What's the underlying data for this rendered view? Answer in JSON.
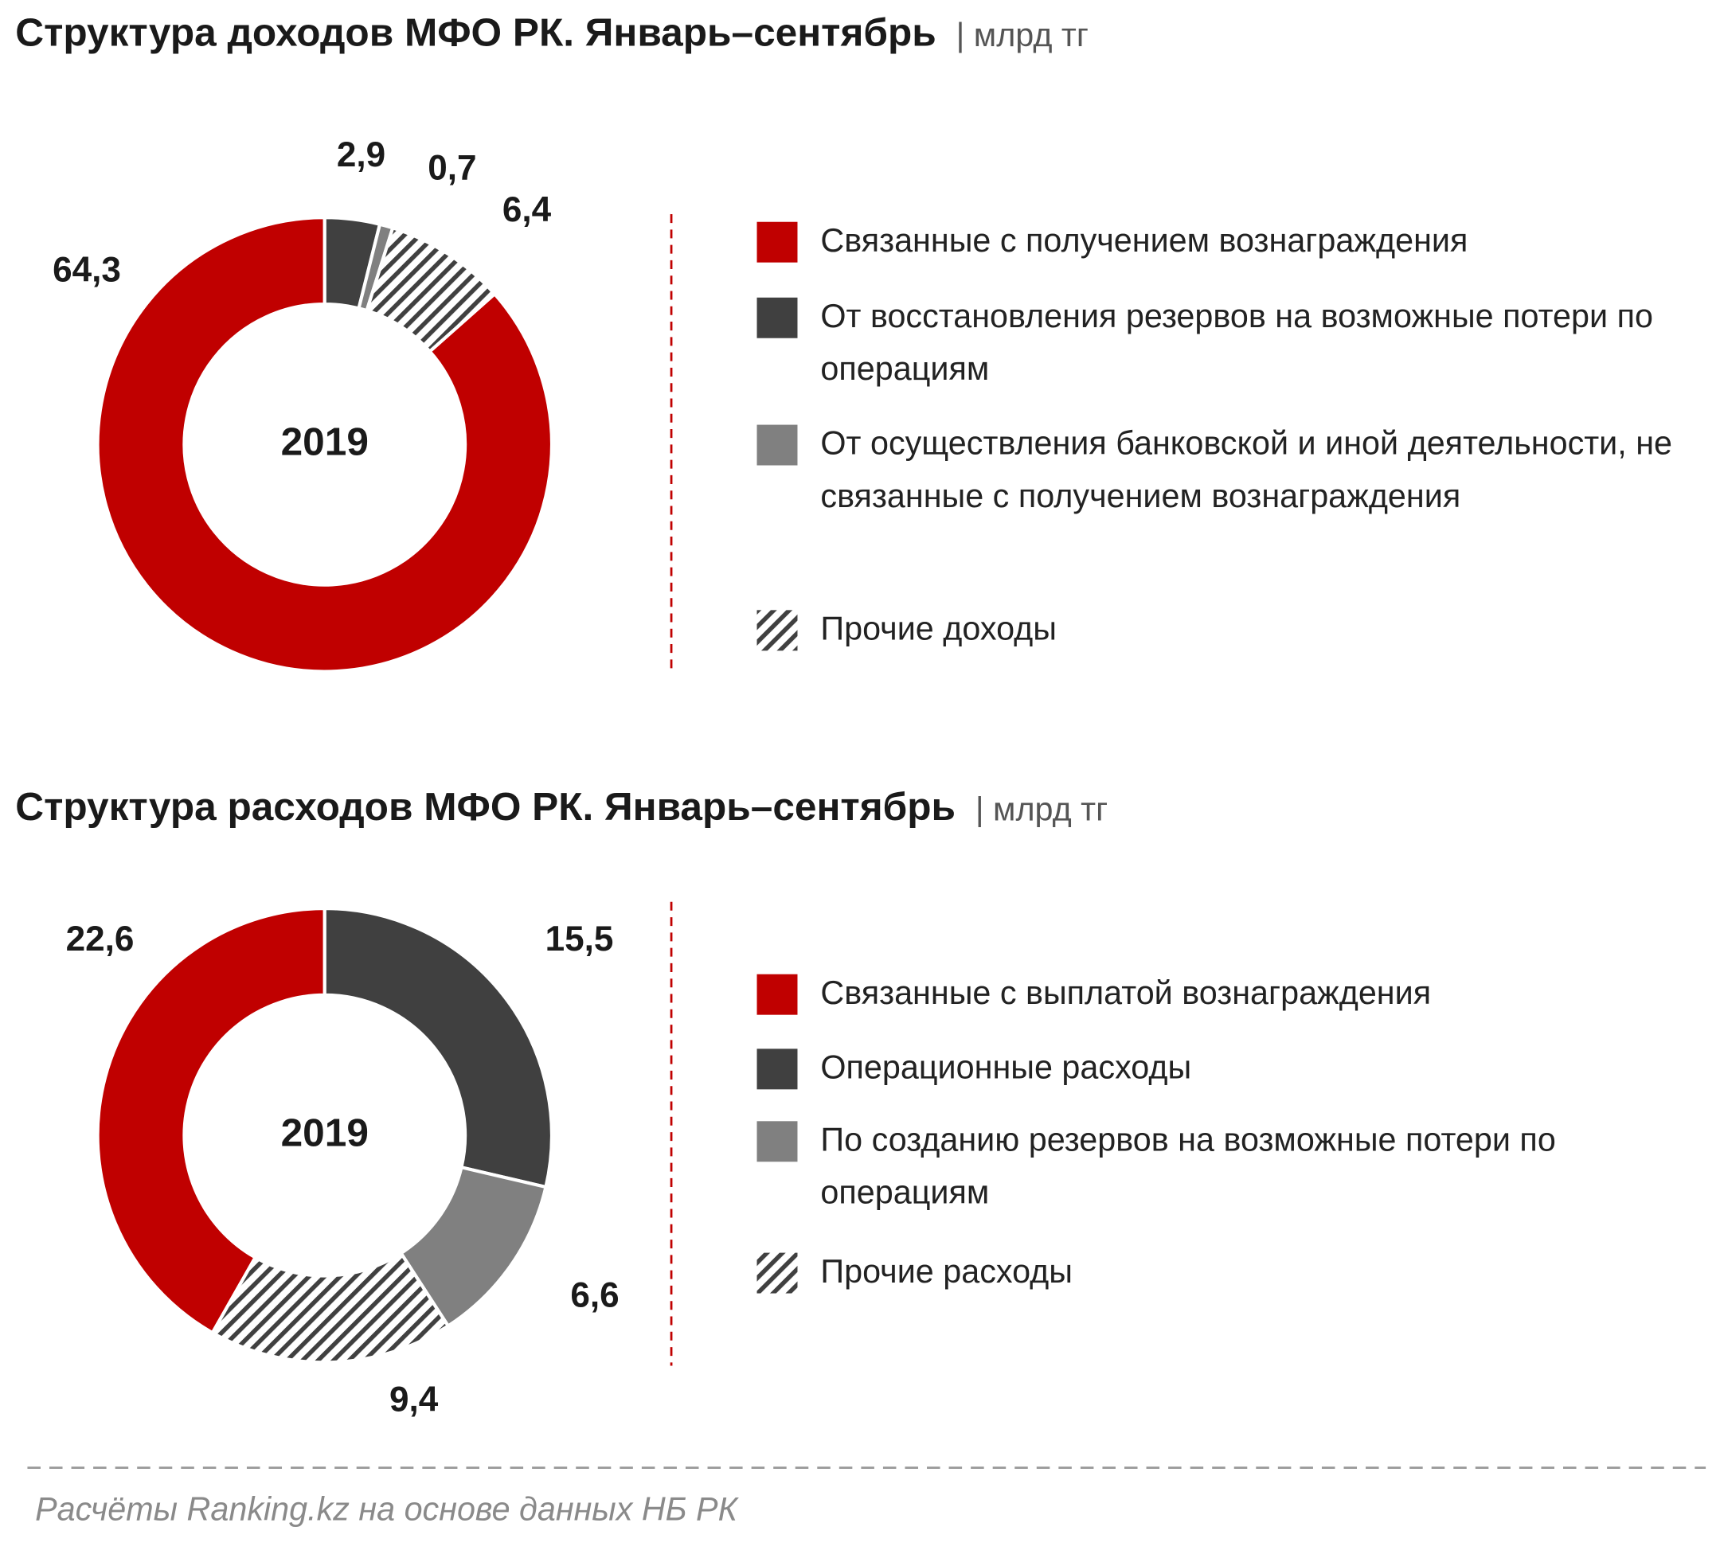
{
  "chart_data": [
    {
      "type": "donut",
      "title": "Структура доходов МФО РК. Январь–сентябрь",
      "unit": "| млрд тг",
      "center_label": "2019",
      "categories": [
        "Связанные с получением вознаграждения",
        "От восстановления резервов на возможные потери по операциям",
        "От осуществления банковской и иной деятельности, не связанные с получением вознаграждения",
        "Прочие доходы"
      ],
      "values": [
        64.3,
        2.9,
        0.7,
        6.4
      ],
      "value_labels": [
        "64,3",
        "2,9",
        "0,7",
        "6,4"
      ],
      "colors": [
        "#c00000",
        "#404040",
        "#808080",
        "#404040"
      ],
      "hatched": [
        false,
        false,
        false,
        true
      ]
    },
    {
      "type": "donut",
      "title": "Структура расходов МФО РК. Январь–сентябрь",
      "unit": "| млрд тг",
      "center_label": "2019",
      "categories": [
        "Связанные с выплатой вознаграждения",
        "Операционные расходы",
        "По созданию резервов на возможные потери по операциям",
        "Прочие расходы"
      ],
      "values": [
        22.6,
        15.5,
        6.6,
        9.4
      ],
      "value_labels": [
        "22,6",
        "15,5",
        "6,6",
        "9,4"
      ],
      "colors": [
        "#c00000",
        "#404040",
        "#808080",
        "#404040"
      ],
      "hatched": [
        false,
        false,
        false,
        true
      ]
    }
  ],
  "source": "Расчёты Ranking.kz на основе данных НБ РК"
}
